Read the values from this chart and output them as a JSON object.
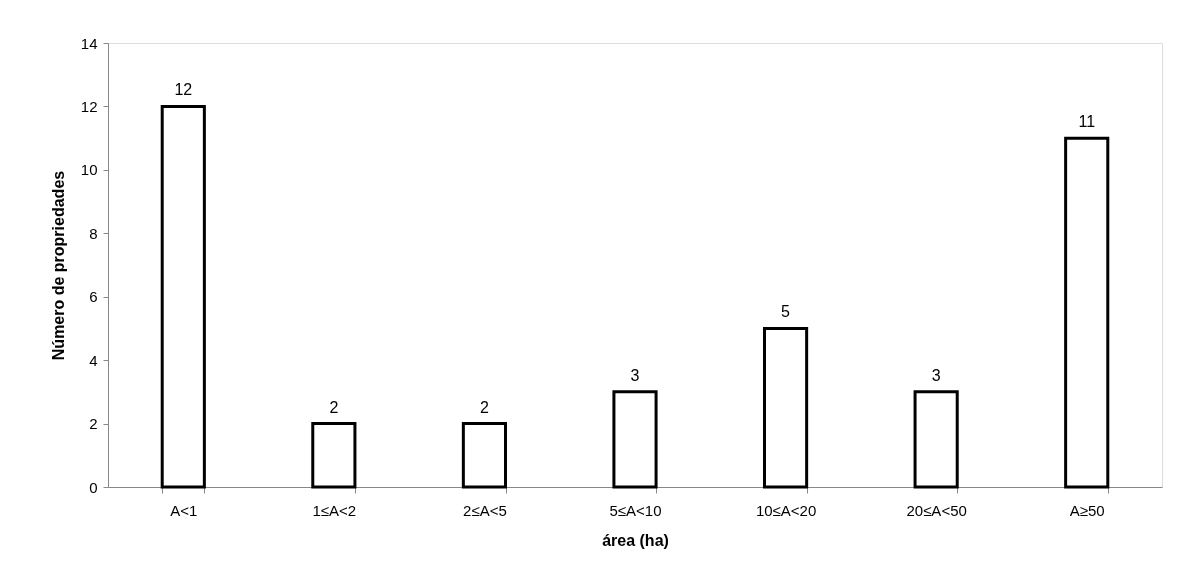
{
  "chart_data": {
    "type": "bar",
    "xlabel": "área (ha)",
    "ylabel": "Número de propriedades",
    "categories": [
      "A<1",
      "1≤A<2",
      "2≤A<5",
      "5≤A<10",
      "10≤A<20",
      "20≤A<50",
      "A≥50"
    ],
    "values": [
      12,
      2,
      2,
      3,
      5,
      3,
      11
    ],
    "color": "#ffffff",
    "ylim": [
      0,
      14
    ],
    "yticks": [
      0,
      2,
      4,
      6,
      8,
      10,
      12,
      14
    ],
    "grid": false,
    "data_labels": true
  }
}
